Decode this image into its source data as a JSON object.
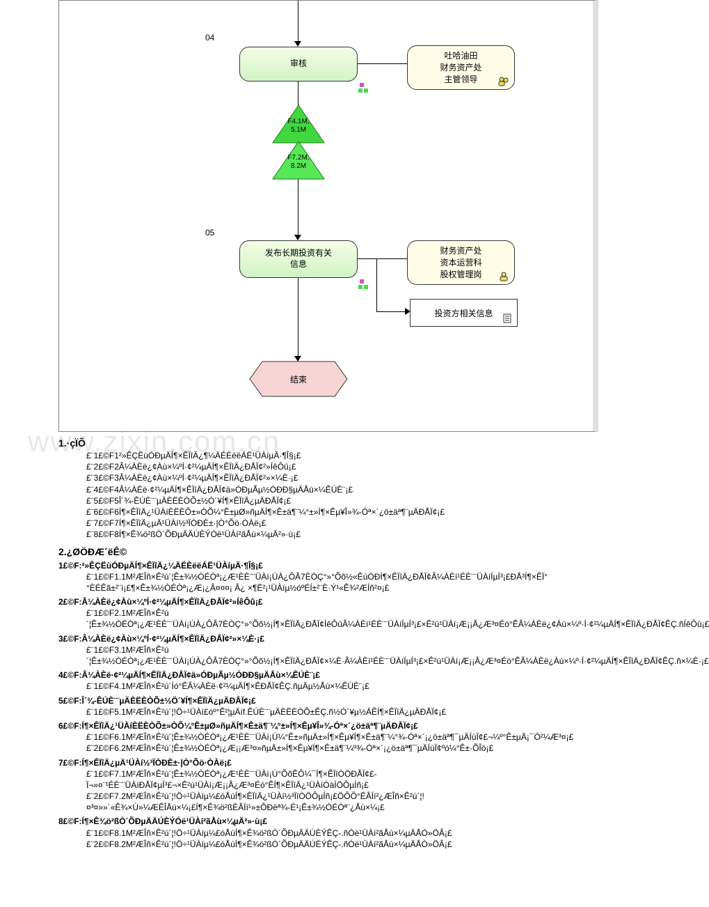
{
  "diagram": {
    "step04_num": "04",
    "step04_label": "审核",
    "step04_actor_l1": "吐哈油田",
    "step04_actor_l2": "财务资产处",
    "step04_actor_l3": "主管领导",
    "tri1_l1": "F4.1M,",
    "tri1_l2": "5.1M",
    "tri2_l1": "F7.2M,",
    "tri2_l2": "8.2M",
    "step05_num": "05",
    "step05_label_l1": "发布长期投资有关",
    "step05_label_l2": "信息",
    "step05_actor_l1": "财务资产处",
    "step05_actor_l2": "资本运营科",
    "step05_actor_l3": "股权管理岗",
    "step05_doc": "投资方相关信息",
    "end_label": "结束",
    "colors": {
      "process_fill_top": "#f4fde6",
      "process_fill_bottom": "#d2f3c5",
      "actor_fill": "#fffde8",
      "tri1_fill": "#3fd83f",
      "tri2_fill": "#57e857",
      "hex_fill": "#f7d5d5",
      "border": "#333333"
    }
  },
  "watermark": "www.zixin.com.cn",
  "sections": {
    "s1_title": "1.·çÏÕ",
    "s1_items": [
      "£¨1£©F1²»ÊÇËùÓÐµÄÍ¶×ÊÏîÄ¿¶¼ÄÉÈëëÁË¹ÜÀíµÄ·¶Î§¡£",
      "£¨2£©F2Â¼ÀÈë¿¢Àù×¼ºÍ·¢²¼µÄÍ¶×ÊÏîÄ¿ÐÅÏ¢²»ÍêÔû¡£",
      "£¨3£©F3Â¼ÀÈë¿¢Àù×¼ºÍ·¢²¼µÄÍ¶×ÊÏîÄ¿ÐÅÏ¢²»×¼È·¡£",
      "£¨4£©F4Â¼ÀÈë·¢²¼µÄÍ¶×ÊÏîÄ¿ÐÅÏ¢ä»ÓÐµÃµ½ÓÐÐ§µÄÅù×¼ÊÚÈ¨¡£",
      "£¨5£©F5Î´¾-ÊÚÈ¨¨µÄÈËÈÒÕ±½Ó´¥Í¶×ÊÏîÄ¿µÄÐÅÏ¢¡£",
      "£¨6£©F6Í¶×ÊÏîÄ¿¹ÜÀíÈËÈÔ±»ÒÕ¼°Ê±µØ»ñµÄÍ¶×Ê±ä¶¨¼°±»Í¶×Êµ¥Î»¾-Óª×´¿ö±äª¶¨µÄÐÅÏ¢¡£",
      "£¨7£©F7Í¶×ÊÏîÄ¿µÄ¹ÜÀí½³ÏÒÐÈ±·|Ò°Õö·ÒÀë¡£",
      "£¨8£©F8Í¶×Ê¾ö²ßÒ´ÕÐµÄÄÚÈÝÓë¹ÜÀí²ãÅù×¼µÄ²»·ù¡£"
    ],
    "s2_title": "2.¿ØÖÐÆ´ëÊ©",
    "s2_groups": [
      {
        "head": "1£©F:²»ÊÇËùÓÐµÄÍ¶×ÊÏîÄ¿¼ÄÉÈëëÁË¹ÜÀíµÄ·¶Î§¡£",
        "subs": [
          "£¨1£©F1.1M²ÆÎñ×Ê²ú´¦Ê±¾½ÒÉÒª¡¿Æ¹ÈÈ¨¨ÜÀí¡ÚÀ¿ÔÂ7ÈÒÇ°»°Õõ½«ÊùÓÐÍ¶×ÊÏîÄ¿ÐÅÏ¢Â¼ÀÈí¹ÉÈ¨¨ÜÀíÍµÍ³¡£ÐÅ³Í¶×ÊÏ°°ÈÉÊã±²¨ì¡£¶×Ê±¾½ÒÉÒª¡¿Æ¡¿Â¤¤¤¡ Â¿ ×¶Ë²¡¹ÜÀíµ½óºÉÍ±²¨È·Ý¹«Ê¾²ÆÍñ²¤¡£"
        ]
      },
      {
        "head": "2£©F:Â¼ÀÈë¿¢Àù×¼ºÍ·¢²¼µÄÍ¶×ÊÏîÄ¿ÐÅÏ¢²»ÍêÔû¡£",
        "subs": [
          "£¨1£©F2.1M²ÆÎñ×Ê²ú´¦Ê±¾½ÒÉÒª¡¿Æ¹ÈÈ¨¨ÜÀí¡ÚÀ¿ÔÂ7ÈÒÇ°»°Õõ½¡Í¶×ÊÏîÄ¿ÐÅÏ¢ÍêÔûÂ¼ÀÈí¹ÉÈ¨¨ÜÀíÍµÍ³¡£×Ê²ú¹ÜÀí¡Æ¡¡Â¿Æ³¤Éó°ÊÂ¼ÀÈë¿¢Àù×¼º·Í·¢²¼µÄÍ¶×ÊÏîÄ¿ÐÅÏ¢ÊÇ.ñÍêÔû¡£"
        ]
      },
      {
        "head": "3£©F:Â¼ÀÈë¿¢Àù×¼ºÍ·¢²¼µÄÍ¶×ÊÏîÄ¿ÐÅÏ¢²»×¼È·¡£",
        "subs": [
          "£¨1£©F3.1M²ÆÎñ×Ê²ú´¦Ê±¾½ÒÉÒª¡¿Æ¹ÈÈ¨¨ÜÀí¡ÚÀ¿ÔÂ7ÈÒÇ°»°Õõ½¡Í¶×ÊÏîÄ¿ÐÅÏ¢×¼È·Â¼ÀÈí¹ÉÈ¨¨ÜÀíÍµÍ³¡£×Ê²ú¹ÜÀí¡Æ¡¡Â¿Æ³¤Éó°ÊÂ¼ÀÈë¿Àù×¼º·Í·¢²¼µÄÍ¶×ÊÏîÄ¿ÐÅÏ¢ÊÇ.ñ×¼È·¡£"
        ]
      },
      {
        "head": "4£©F:Â¼ÀÈë·¢²¼µÄÍ¶×ÊÏîÄ¿ÐÅÏ¢ä»ÓÐµÃµ½ÓÐÐ§µÄÅù×¼ÊÚÈ¨¡£",
        "subs": [
          "£¨1£©F4.1M²ÆÎñ×Ê²ú´Íó°ÊÂ¼ÀÈë·¢²¼µÄÍ¶×ÊÐÅÏ¢ÊÇ.ñµÄµ½Åù×¼ÊÚÈ¨¡£"
        ]
      },
      {
        "head": "5£©F:Î´¾-ÊÚÈ¨¨µÄÈËÈÒÕ±½Ö´¥Í¶×ÊÏîÄ¿µÄÐÅÏ¢¡£",
        "subs": [
          "£¨1£©F5.1M²ÆÎñ×Ê²ú´¦!Ö÷¹ÜÀí£óº°Ê²¦µÄíf.ÊÚÈ¨¨µÄÈËÈÒÕ±ÊÇ.ñ½Ó´¥µ½ÁÊÍ¶×ÊÏîÄ¿µÄÐÅÏ¢¡£"
        ]
      },
      {
        "head": "6£©F:Í¶×ÊÏîÄ¿¹ÜÀíÈËÈÒÕ±»ÒÕ¼°Ê±µØ»ñµÄÍ¶×Ê±ä¶¨¼°±»Í¶×Êµ¥Î»¾-Óª×´¿ö±äª¶¨µÄÐÅÏ¢¡£",
        "subs": [
          "£¨1£©F6.1M²ÆÎñ×Ê²ú´¦Ê±¾½ÒÉÒª¡¿Æ¹ÈÈ¨¨ÜÀí¡Ú¼°Ê±»ñµÄ±»Í¶×Êµ¥Í¶×Ê±ä¶¨¼°¾-Óª×´¡¿ö±äª¶¯µÄÍùÏ¢£¬¼º°Ê±µÄ¡¯Ò²¼Æ³¤¡£",
          "£¨2£©F6.2M²ÆÎñ×Ê²ú´¦Ê±¾½ÒÉÒª¡¿Æ¡¡Æ³¤»ñµÄ±»Í¶×Êµ¥Í¶×Ê±ä¶¨¼º¾-Óª×´¡¿ö±äª¶¯µÄÍùÏ¢ºó¼°Ê±·ÕÎö¡£"
        ]
      },
      {
        "head": "7£©F:Í¶×ÊÏîÄ¿µÄ¹ÜÀí½³ÏÒÐÈ±·|Ò°Õö·ÒÀë¡£",
        "subs": [
          "£¨1£©F7.1M²ÆÎñ×Ê²ú´¦Ê±¾½ÒÉÒª¡¿Æ¹ÈÈ¨¨ÜÀí¡Ú°ÕõÊÔ¼¯Í¶×ÊÏîÒÖÐÅÏ¢£-Ï¬»¤¨¹ÉÈ¨¨ÜÀíÐÅÏ¢µÍ³£¬×Ê²ú¹ÜÀí¡Æ¡¡Â¿Æ³¤Éó°ÊÍ¶×ÊÏîÄ¿¹ÜÀíÒàÌÖÔµÍñ¡£",
          "£¨2£©F7.2M²ÆÎñ×Ê²ú´¦!Ö÷¹ÜÀíµ¼£óÅùÍ¶×ÊÏîÄ¿¹ÜÀí½³ÏîÒÖÔµÍñ¡£ÖÔÔ°ÊÂÍí²¿ÆÎñ×Ê²ú´¦!¤³¤»»´«Ê¾×Ù»¼ÆÊÎÅù×¼¡£Í¶×Ê¾ö²ßÈÂÍí¹»±ÔÐëª¾-É¹¡Ê±¾½ÒÉÒª¨¿Åù×¼¡£"
        ]
      },
      {
        "head": "8£©F:Í¶×Ê¾ö²ßÒ´ÕÐµÄÄÚÈÝÓë¹ÜÀí²ãÅù×¼µÄ²»·ù¡£",
        "subs": [
          "£¨1£©F8.1M²ÆÎñ×Ê²ú´¦!Ö÷¹ÜÀíµ¼£óÅùÍ¶×Ê¾ö²ßÒ´ÕÐµÄÄÚÈÝÊÇ-.ñÓë¹ÜÀí²ãÅù×¼µÄÅÒ»ÖÂ¡£",
          "£¨2£©F8.2M²ÆÎñ×Ê²ú´¦!Ö÷¹ÜÀíµ¼£óÅùÍ¶×Ê¾ö²ßÒ´ÕÐµÄÄÚÈÝÊÇ-.ñÓë¹ÜÀí²ãÅù×¼µÄÅÒ»ÖÂ¡£"
        ]
      }
    ]
  }
}
